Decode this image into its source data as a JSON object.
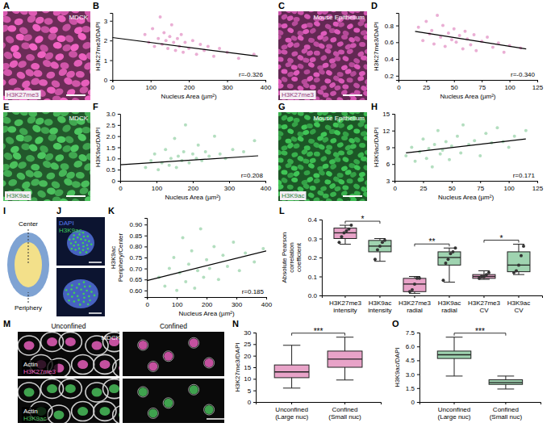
{
  "chart_data": [
    {
      "type": "scatter",
      "panel": "B",
      "x_label": "Nucleus Area (µm²)",
      "y_label": "H3K27me3/DAPI",
      "color": "#e6a0cc",
      "x": [
        85,
        95,
        105,
        110,
        120,
        125,
        130,
        135,
        140,
        145,
        150,
        155,
        160,
        165,
        170,
        175,
        180,
        185,
        190,
        200,
        210,
        220,
        230,
        240,
        250,
        265,
        280,
        300,
        330,
        370
      ],
      "values": [
        2.3,
        1.9,
        2.6,
        1.7,
        2.1,
        3.2,
        1.8,
        2.4,
        2.0,
        1.6,
        2.2,
        2.8,
        1.9,
        1.5,
        2.1,
        1.7,
        2.3,
        1.4,
        1.9,
        1.6,
        2.0,
        1.3,
        1.8,
        1.5,
        1.7,
        1.2,
        1.6,
        1.4,
        1.1,
        1.3
      ],
      "fit": {
        "x": [
          0,
          380
        ],
        "values": [
          2.15,
          1.2
        ]
      },
      "annotations": [
        "r=-0.326"
      ],
      "xlim": [
        0,
        400
      ],
      "xticks": [
        0,
        100,
        200,
        300,
        400
      ],
      "ylim": [
        0,
        3.4
      ],
      "yticks": [
        0,
        1,
        2,
        3
      ]
    },
    {
      "type": "scatter",
      "panel": "D",
      "x_label": "Nucleus Area (µm²)",
      "y_label": "H3K27me3/DAPI",
      "color": "#e6a0cc",
      "x": [
        18,
        22,
        25,
        28,
        30,
        32,
        35,
        38,
        40,
        42,
        45,
        48,
        50,
        52,
        55,
        58,
        60,
        62,
        65,
        68,
        70,
        75,
        80,
        85,
        90,
        95,
        100,
        110
      ],
      "values": [
        0.78,
        0.62,
        0.85,
        0.7,
        0.74,
        0.58,
        0.92,
        0.66,
        0.8,
        0.55,
        0.71,
        0.63,
        0.76,
        0.6,
        0.68,
        0.52,
        0.73,
        0.64,
        0.57,
        0.69,
        0.5,
        0.61,
        0.66,
        0.54,
        0.59,
        0.48,
        0.56,
        0.53
      ],
      "fit": {
        "x": [
          15,
          115
        ],
        "values": [
          0.73,
          0.52
        ]
      },
      "annotations": [
        "r=-0.340"
      ],
      "xlim": [
        0,
        125
      ],
      "xticks": [
        0,
        25,
        50,
        75,
        100,
        125
      ],
      "ylim": [
        0.15,
        0.95
      ],
      "yticks": [
        0.2,
        0.4,
        0.6,
        0.8
      ]
    },
    {
      "type": "scatter",
      "panel": "F",
      "x_label": "Nucleus Area (µm²)",
      "y_label": "H3K9ac/DAPI",
      "color": "#a6d8b4",
      "x": [
        70,
        85,
        95,
        105,
        115,
        125,
        135,
        140,
        150,
        155,
        160,
        170,
        175,
        180,
        190,
        200,
        210,
        215,
        225,
        235,
        245,
        260,
        275,
        290,
        310,
        340,
        370
      ],
      "values": [
        0.6,
        0.9,
        1.2,
        0.5,
        0.8,
        1.4,
        0.7,
        1.0,
        1.9,
        0.6,
        1.1,
        0.9,
        1.3,
        2.5,
        0.8,
        1.2,
        1.0,
        1.6,
        0.9,
        1.3,
        1.1,
        2.0,
        1.2,
        1.0,
        1.4,
        1.3,
        1.8
      ],
      "fit": {
        "x": [
          0,
          380
        ],
        "values": [
          0.72,
          1.12
        ]
      },
      "annotations": [
        "r=0.208"
      ],
      "xlim": [
        0,
        400
      ],
      "xticks": [
        0,
        100,
        200,
        300,
        400
      ],
      "ylim": [
        0,
        3
      ],
      "yticks": [
        0,
        0.5,
        {
          "value": 1,
          "label": "1.0"
        },
        1.5,
        {
          "value": 2,
          "label": "2.0"
        },
        2.5,
        {
          "value": 3,
          "label": "3.0"
        }
      ]
    },
    {
      "type": "scatter",
      "panel": "H",
      "x_label": "Nucleus Area (µm²)",
      "y_label": "H3K9ac/DAPI",
      "color": "#a6d8b4",
      "x": [
        10,
        15,
        18,
        22,
        25,
        28,
        30,
        33,
        35,
        38,
        40,
        42,
        45,
        48,
        50,
        55,
        58,
        60,
        65,
        70,
        75,
        80,
        85,
        90,
        95,
        100,
        105,
        115
      ],
      "values": [
        7.5,
        9,
        6.5,
        8.2,
        10.5,
        7,
        8.8,
        5.5,
        9.5,
        12,
        7.8,
        8.5,
        10,
        6.8,
        9.2,
        11,
        8,
        13,
        9.5,
        10.2,
        7.5,
        11.5,
        9.8,
        12.5,
        10,
        9,
        11,
        12
      ],
      "fit": {
        "x": [
          10,
          115
        ],
        "values": [
          8,
          10.5
        ]
      },
      "annotations": [
        "r=0.171"
      ],
      "xlim": [
        0,
        125
      ],
      "xticks": [
        0,
        25,
        50,
        75,
        100,
        125
      ],
      "ylim": [
        3,
        15
      ],
      "yticks": [
        3,
        6,
        9,
        12,
        15
      ]
    },
    {
      "type": "scatter",
      "panel": "K",
      "x_label": "Nucleus Area (µm²)",
      "y_label": "H3K9ac Periphery/Center",
      "color": "#a6d8b4",
      "x": [
        40,
        60,
        75,
        90,
        100,
        110,
        120,
        130,
        140,
        150,
        160,
        170,
        180,
        190,
        200,
        210,
        225,
        240,
        255,
        270,
        290,
        310,
        330,
        360,
        390
      ],
      "values": [
        0.66,
        0.62,
        0.7,
        0.75,
        0.6,
        0.68,
        0.84,
        0.64,
        0.72,
        0.78,
        0.61,
        0.69,
        0.88,
        0.66,
        0.74,
        0.7,
        0.8,
        0.65,
        0.76,
        0.71,
        0.82,
        0.69,
        0.77,
        0.73,
        0.79
      ],
      "fit": {
        "x": [
          0,
          400
        ],
        "values": [
          0.645,
          0.78
        ]
      },
      "annotations": [
        "r=0.185"
      ],
      "xlim": [
        0,
        400
      ],
      "xticks": [
        0,
        100,
        200,
        300,
        400
      ],
      "ylim": [
        0.57,
        0.93
      ],
      "yticks": [
        {
          "value": 0.6,
          "label": "0.60"
        },
        0.65,
        {
          "value": 0.7,
          "label": "0.70"
        },
        0.75,
        {
          "value": 0.8,
          "label": "0.80"
        },
        0.85,
        {
          "value": 0.9,
          "label": "0.90"
        }
      ]
    },
    {
      "type": "box",
      "panel": "L",
      "y_label": "Absolute Pearson correlation coefficient",
      "categories": [
        "H3K27me3 intensity",
        "H3K9ac intensity",
        "H3K27me3 radial",
        "H3K9ac radial",
        "H3K27me3 CV",
        "H3K9ac CV"
      ],
      "colors": [
        "#e8a3c8",
        "#9fd3b0",
        "#e8a3c8",
        "#9fd3b0",
        "#e8a3c8",
        "#9fd3b0"
      ],
      "min": [
        0.27,
        0.18,
        0.01,
        0.07,
        0.085,
        0.11
      ],
      "q1": [
        0.3,
        0.23,
        0.02,
        0.16,
        0.09,
        0.125
      ],
      "median": [
        0.33,
        0.26,
        0.06,
        0.2,
        0.1,
        0.16
      ],
      "q3": [
        0.355,
        0.29,
        0.09,
        0.23,
        0.11,
        0.23
      ],
      "max": [
        0.37,
        0.3,
        0.1,
        0.25,
        0.13,
        0.27
      ],
      "points": [
        [
          0.28,
          0.31,
          0.33,
          0.34,
          0.35,
          0.37
        ],
        [
          0.19,
          0.24,
          0.26,
          0.28,
          0.29
        ],
        [
          0.02,
          0.03,
          0.06,
          0.09,
          0.09
        ],
        [
          0.08,
          0.17,
          0.19,
          0.22,
          0.23,
          0.25
        ],
        [
          0.09,
          0.1,
          0.1,
          0.11,
          0.12
        ],
        [
          0.12,
          0.13,
          0.16,
          0.21,
          0.26
        ]
      ],
      "significance": [
        {
          "between": [
            0,
            1
          ],
          "label": "*"
        },
        {
          "between": [
            2,
            3
          ],
          "label": "**"
        },
        {
          "between": [
            4,
            5
          ],
          "label": "*"
        }
      ],
      "ylim": [
        0,
        0.4
      ],
      "yticks": [
        {
          "value": 0,
          "label": "0.0"
        },
        0.1,
        0.2,
        0.3,
        0.4
      ]
    },
    {
      "type": "box",
      "panel": "N",
      "y_label": "H3K27me3/DAPI",
      "categories": [
        "Unconfined (Large nuc)",
        "Confined (Small nuc)"
      ],
      "colors": [
        "#e8a3c8",
        "#e8a3c8"
      ],
      "min": [
        6,
        9.5
      ],
      "q1": [
        10.5,
        15
      ],
      "median": [
        13,
        18.5
      ],
      "q3": [
        16,
        22
      ],
      "max": [
        24.5,
        28
      ],
      "significance": [
        {
          "between": [
            0,
            1
          ],
          "label": "***"
        }
      ],
      "ylim": [
        0,
        30
      ],
      "yticks": [
        0,
        5,
        10,
        15,
        20,
        25,
        30
      ]
    },
    {
      "type": "box",
      "panel": "O",
      "y_label": "H3K9ac/DAPI",
      "categories": [
        "Unconfined (Large nuc)",
        "Confined (Small nuc)"
      ],
      "colors": [
        "#9fd3b0",
        "#9fd3b0"
      ],
      "min": [
        2.8,
        1.4
      ],
      "q1": [
        4.7,
        1.9
      ],
      "median": [
        5.1,
        2.1
      ],
      "q3": [
        5.5,
        2.4
      ],
      "max": [
        7.0,
        2.8
      ],
      "significance": [
        {
          "between": [
            0,
            1
          ],
          "label": "***"
        }
      ],
      "ylim": [
        0,
        7.5
      ],
      "yticks": [
        0,
        1.5,
        {
          "value": 3,
          "label": "3.0"
        },
        4.5,
        {
          "value": 6,
          "label": "6.0"
        },
        7.5
      ]
    }
  ],
  "images": [
    {
      "panel": "A",
      "cell_line": "MDCK",
      "stain": "H3K27me3",
      "color": "#c4519f"
    },
    {
      "panel": "C",
      "cell_line": "Mouse Epithelium",
      "stain": "H3K27me3",
      "color": "#b44a98"
    },
    {
      "panel": "E",
      "cell_line": "MDCK",
      "stain": "H3K9ac",
      "color": "#3fa24e"
    },
    {
      "panel": "G",
      "cell_line": "Mouse Epithelium",
      "stain": "H3K9ac",
      "color": "#34a046"
    }
  ],
  "diagram": {
    "panel": "I",
    "center": "Center",
    "periphery": "Periphery"
  },
  "nucleus_images": {
    "panel": "J",
    "stains": [
      "DAPI",
      "H3K9ac"
    ],
    "colors": [
      "#5a7cf0",
      "#3fcf5a"
    ]
  },
  "confinement": {
    "panel": "M",
    "cell_line": "MDCK",
    "counterstain": "Actin",
    "columns": [
      "Unconfined",
      "Confined"
    ],
    "rows": [
      {
        "stain": "H3K27me3",
        "color": "#c4519f"
      },
      {
        "stain": "H3K9ac",
        "color": "#3fa24e"
      }
    ]
  }
}
